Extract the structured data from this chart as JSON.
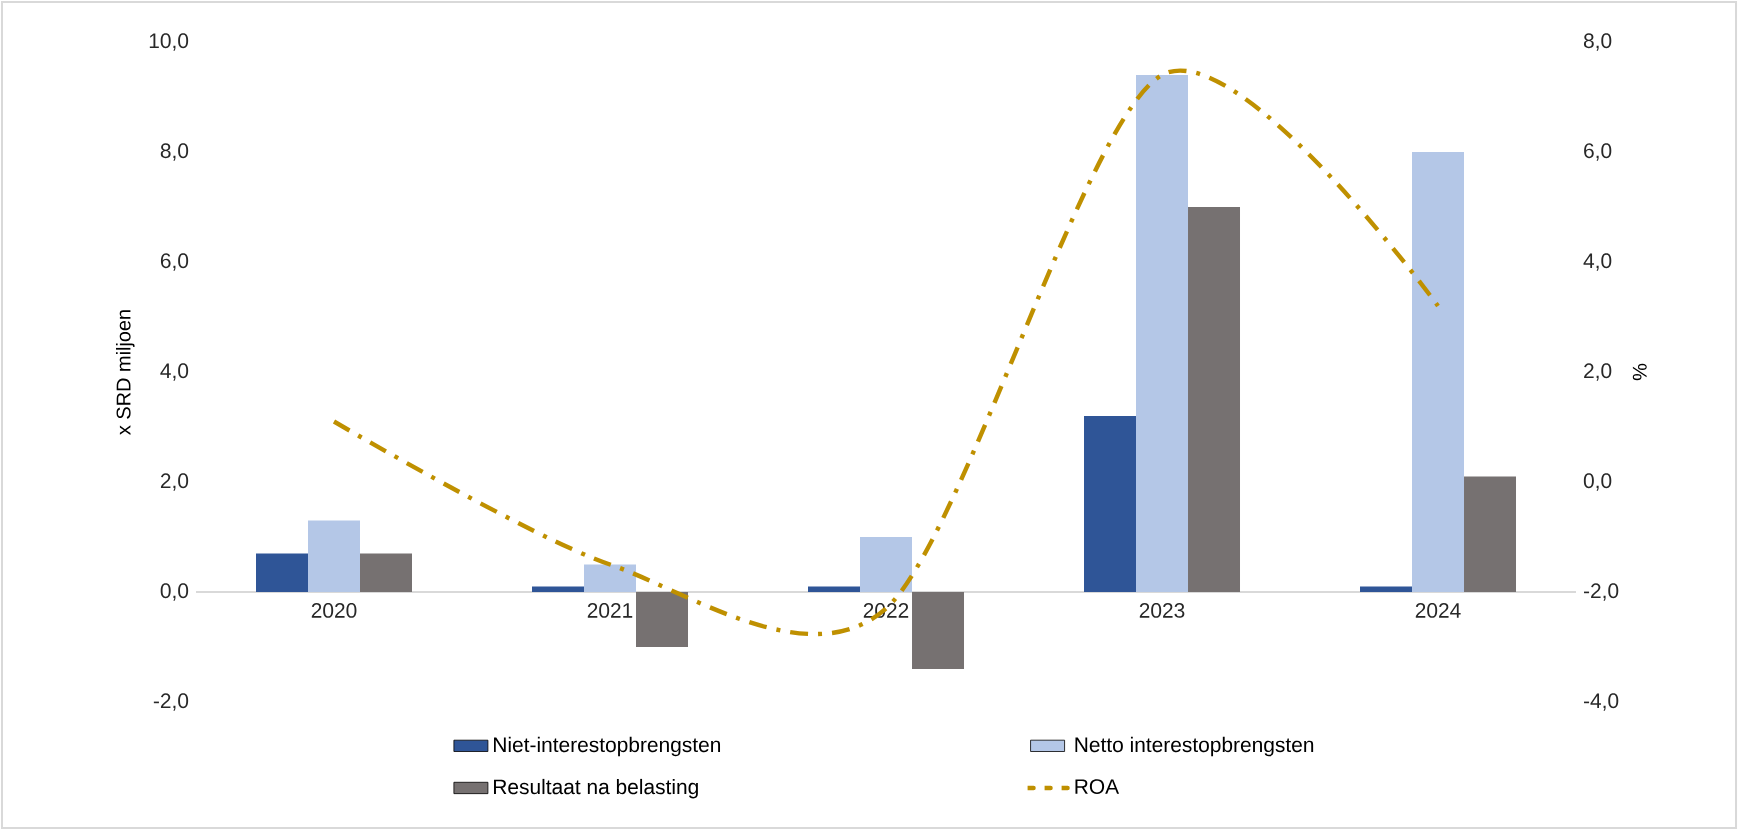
{
  "chart_data": {
    "type": "bar",
    "categories": [
      "2020",
      "2021",
      "2022",
      "2023",
      "2024"
    ],
    "ylabel": "x SRD miljoen",
    "y2label": "%",
    "ylim": [
      -2,
      10
    ],
    "yticks": [
      {
        "value": -2,
        "label": "-2,0"
      },
      {
        "value": 0,
        "label": "0,0"
      },
      {
        "value": 2,
        "label": "2,0"
      },
      {
        "value": 4,
        "label": "4,0"
      },
      {
        "value": 6,
        "label": "6,0"
      },
      {
        "value": 8,
        "label": "8,0"
      },
      {
        "value": 10,
        "label": "10,0"
      }
    ],
    "y2lim": [
      -4,
      8
    ],
    "y2ticks": [
      {
        "value": -4,
        "label": "-4,0"
      },
      {
        "value": -2,
        "label": "-2,0"
      },
      {
        "value": 0,
        "label": "0,0"
      },
      {
        "value": 2,
        "label": "2,0"
      },
      {
        "value": 4,
        "label": "4,0"
      },
      {
        "value": 6,
        "label": "6,0"
      },
      {
        "value": 8,
        "label": "8,0"
      }
    ],
    "legend": "bottom",
    "grid": false,
    "series": [
      {
        "name": "Niet-interestopbrengsten",
        "color": "#2f5597",
        "values": [
          0.7,
          0.1,
          0.1,
          3.2,
          0.1
        ]
      },
      {
        "name": "Netto interestopbrengsten",
        "color": "#b4c7e7",
        "values": [
          1.3,
          0.5,
          1.0,
          9.4,
          8.0
        ]
      },
      {
        "name": "Resultaat na belasting",
        "color": "#767171",
        "values": [
          0.7,
          -1.0,
          -1.4,
          7.0,
          2.1
        ]
      },
      {
        "name": "ROA",
        "type": "line",
        "axis": "y2",
        "color": "#bf9000",
        "line_style": "dashdot",
        "marker": "none",
        "values": [
          1.1,
          -1.5,
          -2.3,
          7.4,
          3.2
        ]
      }
    ]
  }
}
